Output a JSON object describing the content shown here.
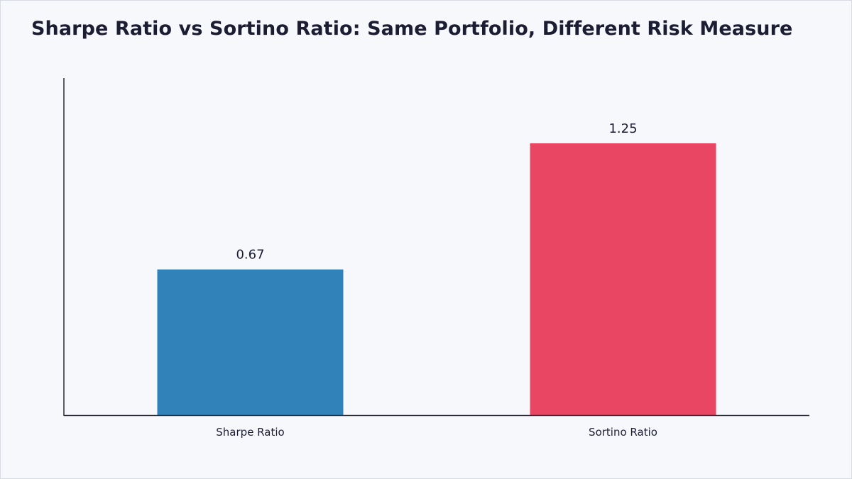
{
  "chart_data": {
    "type": "bar",
    "title": "Sharpe Ratio vs Sortino Ratio: Same Portfolio, Different Risk Measure",
    "categories": [
      "Sharpe Ratio",
      "Sortino Ratio"
    ],
    "values": [
      0.67,
      1.25
    ],
    "value_labels": [
      "0.67",
      "1.25"
    ],
    "colors": [
      "#3282ba",
      "#e84663"
    ],
    "xlabel": "",
    "ylabel": "",
    "ylim": [
      0,
      1.55
    ],
    "grid": false,
    "legend": "none"
  }
}
